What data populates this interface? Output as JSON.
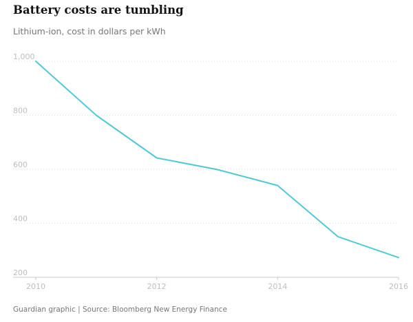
{
  "chart_data": {
    "type": "line",
    "title": "Battery costs are tumbling",
    "subtitle": "Lithium-ion, cost in dollars per kWh",
    "xlabel": "",
    "ylabel": "",
    "x": [
      2010,
      2011,
      2012,
      2013,
      2014,
      2015,
      2016
    ],
    "series": [
      {
        "values": [
          1000,
          800,
          642,
          599,
          540,
          350,
          273
        ]
      }
    ],
    "xlim": [
      2010,
      2016
    ],
    "ylim": [
      200,
      1000
    ],
    "xticks": [
      "2010",
      "2012",
      "2014",
      "2016"
    ],
    "yticks": [
      "1,000",
      "800",
      "600",
      "400",
      "200"
    ],
    "ytick_values": [
      1000,
      800,
      600,
      400,
      200
    ],
    "xtick_values": [
      2010,
      2012,
      2014,
      2016
    ],
    "grid": true,
    "line_color": "#4fc8d6",
    "source": "Guardian graphic | Source: Bloomberg New Energy Finance"
  }
}
